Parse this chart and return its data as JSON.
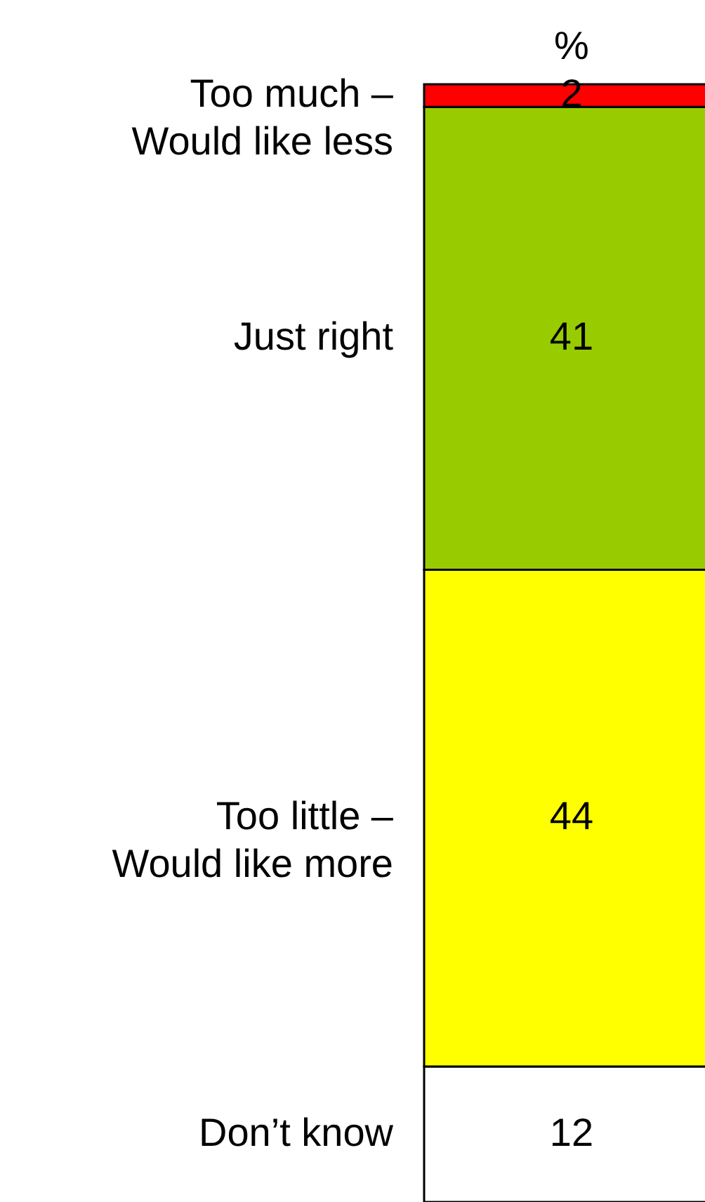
{
  "chart_data": {
    "type": "bar",
    "title": "%",
    "stacked": true,
    "data_labels": true,
    "categories": [
      null
    ],
    "series": [
      {
        "name": "Don’t know",
        "color": "#ffffff",
        "values": [
          12
        ]
      },
      {
        "name": "Too little –\nWould like more",
        "color": "#ffff00",
        "values": [
          44
        ]
      },
      {
        "name": "Just right",
        "color": "#99cc00",
        "values": [
          41
        ]
      },
      {
        "name": "Too much –\nWould like less",
        "color": "#ff0000",
        "values": [
          2
        ]
      }
    ]
  }
}
